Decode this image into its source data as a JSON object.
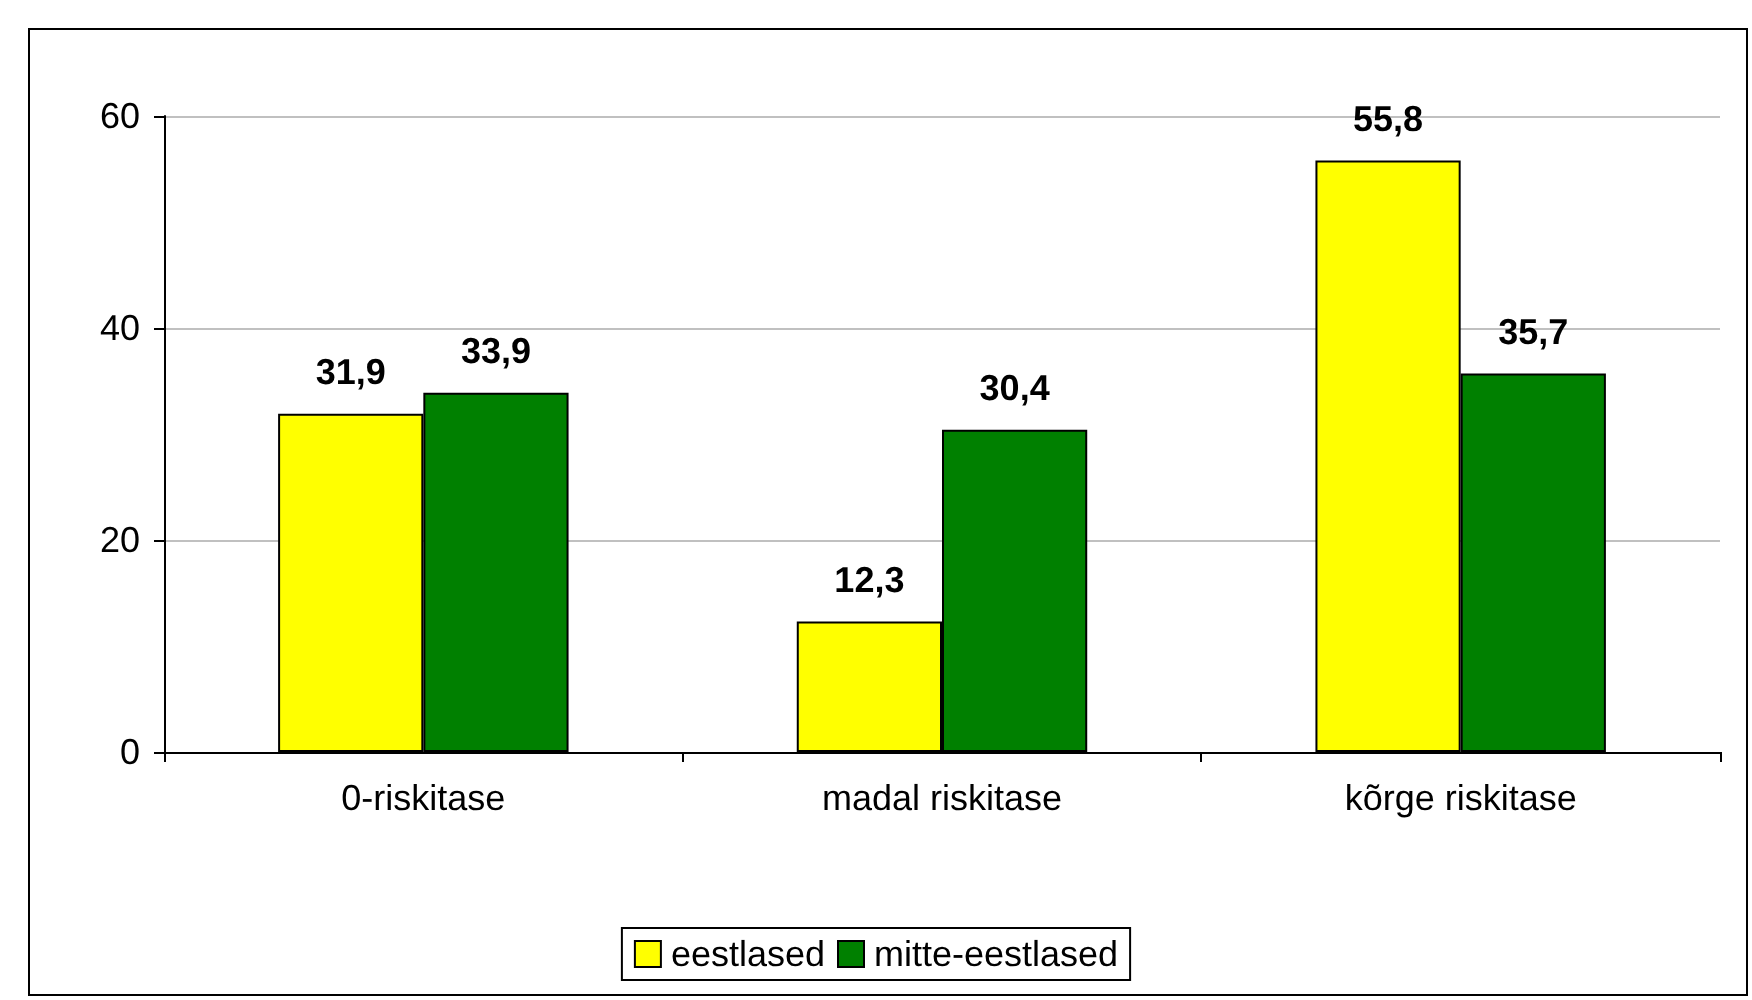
{
  "chart_data": {
    "type": "bar",
    "categories": [
      "0-riskitase",
      "madal riskitase",
      "kõrge riskitase"
    ],
    "series": [
      {
        "name": "eestlased",
        "color": "#ffff00",
        "values": [
          31.9,
          12.3,
          55.8
        ],
        "value_labels": [
          "31,9",
          "12,3",
          "55,8"
        ]
      },
      {
        "name": "mitte-eestlased",
        "color": "#008000",
        "values": [
          33.9,
          30.4,
          35.7
        ],
        "value_labels": [
          "33,9",
          "30,4",
          "35,7"
        ]
      }
    ],
    "ylim": [
      0,
      60
    ],
    "yticks": [
      0,
      20,
      40,
      60
    ],
    "grid": "y",
    "legend": "bottom"
  }
}
